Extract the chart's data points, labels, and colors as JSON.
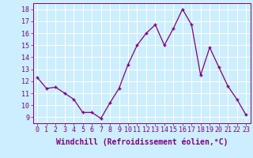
{
  "x": [
    0,
    1,
    2,
    3,
    4,
    5,
    6,
    7,
    8,
    9,
    10,
    11,
    12,
    13,
    14,
    15,
    16,
    17,
    18,
    19,
    20,
    21,
    22,
    23
  ],
  "y": [
    12.3,
    11.4,
    11.5,
    11.0,
    10.5,
    9.4,
    9.4,
    8.9,
    10.2,
    11.4,
    13.4,
    15.0,
    16.0,
    16.7,
    15.0,
    16.4,
    18.0,
    16.7,
    12.5,
    14.8,
    13.2,
    11.6,
    10.5,
    9.2
  ],
  "xlim": [
    -0.5,
    23.5
  ],
  "ylim": [
    8.5,
    18.5
  ],
  "yticks": [
    9,
    10,
    11,
    12,
    13,
    14,
    15,
    16,
    17,
    18
  ],
  "xticks": [
    0,
    1,
    2,
    3,
    4,
    5,
    6,
    7,
    8,
    9,
    10,
    11,
    12,
    13,
    14,
    15,
    16,
    17,
    18,
    19,
    20,
    21,
    22,
    23
  ],
  "xlabel": "Windchill (Refroidissement éolien,°C)",
  "line_color": "#800080",
  "marker": "+",
  "background_color": "#cceeff",
  "grid_color": "#ffffff",
  "text_color": "#800080",
  "tick_fontsize": 6.0,
  "xlabel_fontsize": 7.0
}
